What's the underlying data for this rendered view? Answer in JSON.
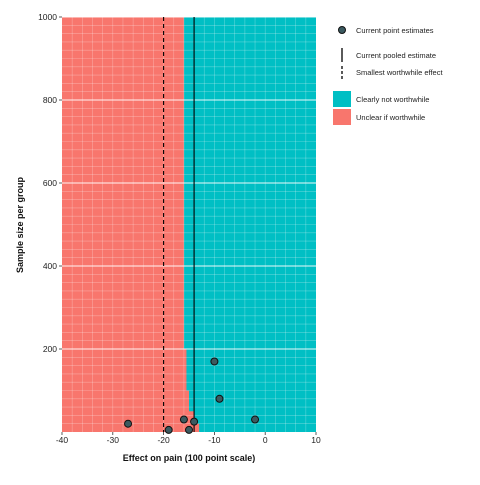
{
  "chart_data": {
    "type": "heatmap",
    "xlabel": "Effect on pain (100 point scale)",
    "ylabel": "Sample size per group",
    "xlim": [
      -40,
      10
    ],
    "ylim": [
      0,
      1000
    ],
    "x_ticks": [
      -40,
      -30,
      -20,
      -10,
      0,
      10
    ],
    "y_ticks": [
      200,
      400,
      600,
      800,
      1000
    ],
    "x_tick_labels": [
      "-40",
      "-30",
      "-20",
      "-10",
      "0",
      "10"
    ],
    "y_tick_labels": [
      "200",
      "400",
      "600",
      "800",
      "1000"
    ],
    "grid": true,
    "legend_position": "right",
    "regions": [
      {
        "name": "Clearly not worthwhile",
        "color": "#00bfc4"
      },
      {
        "name": "Unclear if worthwhile",
        "color": "#f8766d"
      }
    ],
    "boundary": [
      {
        "n": 0,
        "effect": -12.5
      },
      {
        "n": 20,
        "effect": -13.0
      },
      {
        "n": 50,
        "effect": -14.0
      },
      {
        "n": 100,
        "effect": -15.0
      },
      {
        "n": 150,
        "effect": -15.5
      },
      {
        "n": 200,
        "effect": -15.5
      },
      {
        "n": 240,
        "effect": -16.0
      },
      {
        "n": 1000,
        "effect": -16.0
      }
    ],
    "point_estimates": {
      "name": "Current point estimates",
      "color": "#3b5a60",
      "points": [
        {
          "x": -27,
          "y": 20
        },
        {
          "x": -19,
          "y": 5
        },
        {
          "x": -16,
          "y": 30
        },
        {
          "x": -15,
          "y": 5
        },
        {
          "x": -14,
          "y": 25
        },
        {
          "x": -10,
          "y": 170
        },
        {
          "x": -9,
          "y": 80
        },
        {
          "x": -2,
          "y": 30
        }
      ]
    },
    "pooled_estimate": {
      "name": "Current pooled estimate",
      "x": -14
    },
    "smallest_worthwhile_effect": {
      "name": "Smallest worthwhile effect",
      "x": -20
    },
    "legend": {
      "point_label": "Current point estimates",
      "pooled_label": "Current pooled estimate",
      "swe_label": "Smallest worthwhile effect",
      "region_labels": [
        "Clearly not worthwhile",
        "Unclear if worthwhile"
      ]
    }
  }
}
